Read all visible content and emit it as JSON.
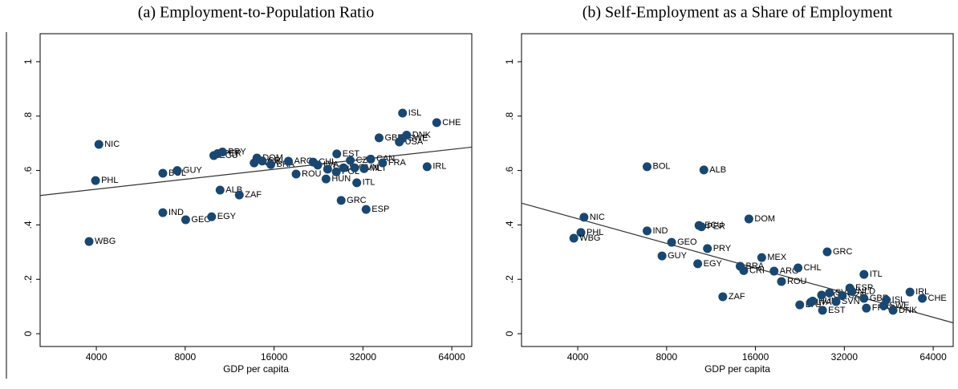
{
  "chart_data": [
    {
      "type": "scatter",
      "title": "(a) Employment-to-Population Ratio",
      "x_label": "GDP per capita",
      "x_log_scale": true,
      "xlim": [
        2580,
        74800
      ],
      "ylim": [
        -0.047,
        1.103
      ],
      "xticks": [
        4000,
        8000,
        16000,
        32000,
        64000
      ],
      "yticks": [
        0,
        {
          "value": 0.2,
          "label": ".2"
        },
        {
          "value": 0.4,
          "label": ".4"
        },
        {
          "value": 0.6,
          "label": ".6"
        },
        {
          "value": 0.8,
          "label": ".8"
        },
        1
      ],
      "series": [
        {
          "color": "#1a476f",
          "label_color": "#1f5fb0",
          "labels": [
            "NIC",
            "PHL",
            "WBG",
            "BOL",
            "GUY",
            "IND",
            "GEO",
            "EGY",
            "ALB",
            "ZAF",
            "ECU",
            "PER",
            "PRY",
            "DOM",
            "MEX",
            "CRI",
            "BRA",
            "ARG",
            "ROU",
            "CHL",
            "LVA",
            "HUN",
            "LTU",
            "EST",
            "POL",
            "SVK",
            "GRC",
            "SVN",
            "ITL",
            "CZE",
            "MLT",
            "ESP",
            "CAN",
            "FRA",
            "GBR",
            "ISL",
            "USA",
            "SWE",
            "DNK",
            "CHE",
            "IRL"
          ],
          "x": [
            4080,
            3975,
            3780,
            6720,
            7520,
            6720,
            8030,
            9830,
            10500,
            12200,
            10000,
            10300,
            10700,
            14000,
            13700,
            14600,
            15600,
            17900,
            19000,
            21700,
            22500,
            24000,
            24300,
            26100,
            26000,
            27500,
            27000,
            30000,
            30500,
            29000,
            32300,
            32800,
            34000,
            37300,
            36300,
            43600,
            42500,
            43500,
            45000,
            56900,
            52800
          ],
          "values": [
            0.696,
            0.563,
            0.339,
            0.59,
            0.6,
            0.445,
            0.419,
            0.43,
            0.528,
            0.51,
            0.655,
            0.662,
            0.668,
            0.646,
            0.628,
            0.635,
            0.622,
            0.634,
            0.587,
            0.631,
            0.62,
            0.569,
            0.605,
            0.661,
            0.595,
            0.61,
            0.49,
            0.61,
            0.555,
            0.637,
            0.607,
            0.457,
            0.642,
            0.628,
            0.72,
            0.811,
            0.705,
            0.718,
            0.73,
            0.776,
            0.614
          ]
        }
      ],
      "fit_line": {
        "color": "#333333",
        "x": [
          2580,
          74800
        ],
        "values": [
          0.508,
          0.686
        ]
      }
    },
    {
      "type": "scatter",
      "title": "(b) Self-Employment as a Share of Employment",
      "x_label": "GDP per capita",
      "x_log_scale": true,
      "xlim": [
        2580,
        74800
      ],
      "ylim": [
        -0.047,
        1.103
      ],
      "xticks": [
        4000,
        8000,
        16000,
        32000,
        64000
      ],
      "yticks": [
        0,
        {
          "value": 0.2,
          "label": ".2"
        },
        {
          "value": 0.4,
          "label": ".4"
        },
        {
          "value": 0.6,
          "label": ".6"
        },
        {
          "value": 0.8,
          "label": ".8"
        },
        1
      ],
      "series": [
        {
          "color": "#1a476f",
          "label_color": "#1f5fb0",
          "labels": [
            "NIC",
            "PHL",
            "WBG",
            "BOL",
            "ALB",
            "IND",
            "GEO",
            "GUY",
            "EGY",
            "PRY",
            "ECU",
            "PER",
            "ZAF",
            "DOM",
            "BRA",
            "CRI",
            "MEX",
            "ARG",
            "ROU",
            "CHL",
            "LTU",
            "LVA",
            "HUN",
            "EST",
            "POL",
            "SVK",
            "SVN",
            "GRC",
            "CZE",
            "ESP",
            "NLD",
            "ITL",
            "GBR",
            "FRA",
            "ISL",
            "SWE",
            "DNK",
            "IRL",
            "CHE"
          ],
          "x": [
            4200,
            4100,
            3880,
            6870,
            10700,
            6870,
            8320,
            7720,
            10200,
            11000,
            10300,
            10500,
            12400,
            15200,
            14200,
            14600,
            16800,
            18500,
            19600,
            22300,
            22600,
            24600,
            25000,
            27000,
            26800,
            28500,
            30000,
            28000,
            31500,
            33400,
            34000,
            37300,
            37300,
            38000,
            44400,
            43500,
            46800,
            53400,
            58800
          ],
          "values": [
            0.428,
            0.372,
            0.351,
            0.614,
            0.602,
            0.378,
            0.336,
            0.286,
            0.257,
            0.313,
            0.398,
            0.393,
            0.136,
            0.422,
            0.248,
            0.232,
            0.28,
            0.23,
            0.192,
            0.242,
            0.106,
            0.115,
            0.12,
            0.086,
            0.142,
            0.15,
            0.118,
            0.301,
            0.14,
            0.168,
            0.155,
            0.218,
            0.13,
            0.094,
            0.124,
            0.103,
            0.086,
            0.153,
            0.13
          ]
        }
      ],
      "fit_line": {
        "color": "#333333",
        "x": [
          2580,
          74800
        ],
        "values": [
          0.48,
          0.04
        ]
      }
    }
  ]
}
